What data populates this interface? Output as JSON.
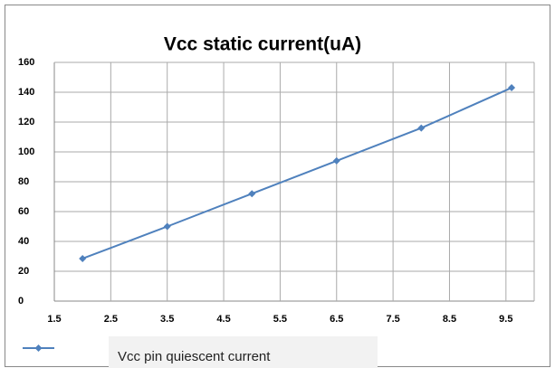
{
  "chart_data": {
    "type": "line",
    "title": "Vcc static current(uA)",
    "x": [
      2,
      3.5,
      5,
      6.5,
      8,
      9.6
    ],
    "series": [
      {
        "name": "Vcc pin quiescent current",
        "color": "#4f81bd",
        "values": [
          28.5,
          50,
          72,
          94,
          116,
          143
        ]
      }
    ],
    "xlim": [
      1.5,
      10
    ],
    "xticks": [
      1.5,
      2.5,
      3.5,
      4.5,
      5.5,
      6.5,
      7.5,
      8.5,
      9.5
    ],
    "ylim": [
      0,
      160
    ],
    "yticks": [
      0,
      20,
      40,
      60,
      80,
      100,
      120,
      140,
      160
    ],
    "grid": true,
    "legend": "bottom-left"
  }
}
